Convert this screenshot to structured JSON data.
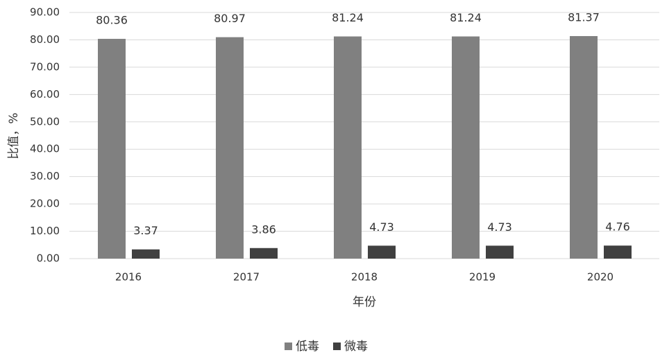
{
  "chart_data": {
    "type": "bar",
    "y_label": "比值，%",
    "x_label": "年份",
    "categories": [
      "2016",
      "2017",
      "2018",
      "2019",
      "2020"
    ],
    "series": [
      {
        "name": "低毒",
        "color": "#808080",
        "values": [
          80.36,
          80.97,
          81.24,
          81.24,
          81.37
        ]
      },
      {
        "name": "微毒",
        "color": "#404040",
        "values": [
          3.37,
          3.86,
          4.73,
          4.73,
          4.76
        ]
      }
    ],
    "ylim": [
      0,
      90
    ],
    "yticks": [
      {
        "value": 0,
        "label": "0.00"
      },
      {
        "value": 10,
        "label": "10.00"
      },
      {
        "value": 20,
        "label": "20.00"
      },
      {
        "value": 30,
        "label": "30.00"
      },
      {
        "value": 40,
        "label": "40.00"
      },
      {
        "value": 50,
        "label": "50.00"
      },
      {
        "value": 60,
        "label": "60.00"
      },
      {
        "value": 70,
        "label": "70.00"
      },
      {
        "value": 80,
        "label": "80.00"
      },
      {
        "value": 90,
        "label": "90.00"
      }
    ],
    "grid": true,
    "legend": "bottom"
  }
}
